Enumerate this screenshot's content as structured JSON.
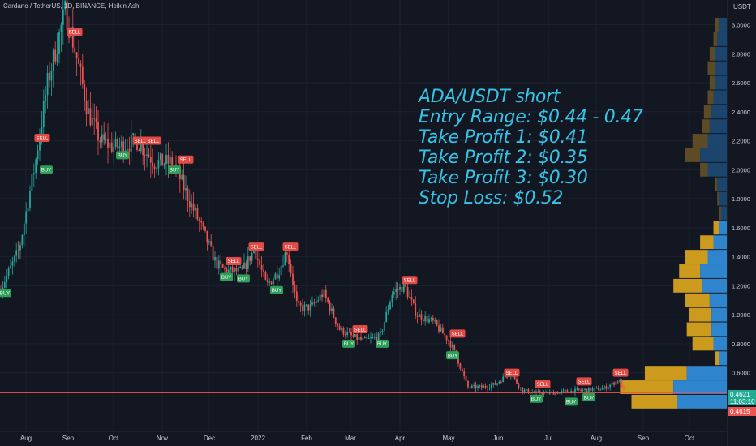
{
  "header": {
    "title": "Cardano / TetherUS, 1D, BINANCE, Heikin Ashi"
  },
  "axis": {
    "unit": "USDT"
  },
  "annotation": {
    "lines": [
      "ADA/USDT short",
      "Entry Range: $0.44 - 0.47",
      "Take Profit 1: $0.41",
      "Take Profit 2: $0.35",
      "Take Profit 3: $0.30",
      "Stop Loss: $0.52"
    ]
  },
  "price_tags": {
    "close_price": "0.4621",
    "countdown": "11:03:10",
    "last_price": "0.4615"
  },
  "colors": {
    "background": "#131722",
    "up": "#26a69a",
    "down": "#ef5350",
    "annotation": "#36c3e6",
    "vp_blue": "#2f8bd8",
    "vp_gold": "#d6a21f"
  },
  "chart_data": {
    "type": "candlestick",
    "style": "Heikin Ashi",
    "symbol": "Cardano / TetherUS",
    "exchange": "BINANCE",
    "interval": "1D",
    "y_ticks": [
      "0.6000",
      "0.8000",
      "1.0000",
      "1.2000",
      "1.4000",
      "1.6000",
      "1.8000",
      "2.0000",
      "2.2000",
      "2.4000",
      "2.6000",
      "2.8000",
      "3.0000"
    ],
    "x_ticks": [
      "Aug",
      "Sep",
      "Oct",
      "Nov",
      "Dec",
      "2022",
      "Feb",
      "Mar",
      "Apr",
      "May",
      "Jun",
      "Jul",
      "Aug",
      "Sep",
      "Oct"
    ],
    "ylim": [
      0.3,
      3.1
    ],
    "horizontal_line": 0.4615,
    "series_keypoints": [
      {
        "t": 0,
        "p": 1.15
      },
      {
        "t": 25,
        "p": 1.45
      },
      {
        "t": 45,
        "p": 2.05
      },
      {
        "t": 60,
        "p": 2.6
      },
      {
        "t": 82,
        "p": 3.1
      },
      {
        "t": 95,
        "p": 2.8
      },
      {
        "t": 110,
        "p": 2.4
      },
      {
        "t": 125,
        "p": 2.2
      },
      {
        "t": 145,
        "p": 2.15
      },
      {
        "t": 170,
        "p": 2.2
      },
      {
        "t": 192,
        "p": 2.05
      },
      {
        "t": 215,
        "p": 2.05
      },
      {
        "t": 230,
        "p": 1.85
      },
      {
        "t": 250,
        "p": 1.6
      },
      {
        "t": 268,
        "p": 1.35
      },
      {
        "t": 280,
        "p": 1.3
      },
      {
        "t": 300,
        "p": 1.3
      },
      {
        "t": 315,
        "p": 1.45
      },
      {
        "t": 330,
        "p": 1.2
      },
      {
        "t": 345,
        "p": 1.3
      },
      {
        "t": 355,
        "p": 1.45
      },
      {
        "t": 368,
        "p": 1.05
      },
      {
        "t": 385,
        "p": 1.05
      },
      {
        "t": 400,
        "p": 1.15
      },
      {
        "t": 420,
        "p": 0.9
      },
      {
        "t": 435,
        "p": 0.85
      },
      {
        "t": 450,
        "p": 0.82
      },
      {
        "t": 470,
        "p": 0.85
      },
      {
        "t": 485,
        "p": 1.15
      },
      {
        "t": 500,
        "p": 1.2
      },
      {
        "t": 515,
        "p": 1.0
      },
      {
        "t": 535,
        "p": 0.95
      },
      {
        "t": 555,
        "p": 0.82
      },
      {
        "t": 565,
        "p": 0.7
      },
      {
        "t": 578,
        "p": 0.5
      },
      {
        "t": 595,
        "p": 0.5
      },
      {
        "t": 612,
        "p": 0.52
      },
      {
        "t": 630,
        "p": 0.6
      },
      {
        "t": 645,
        "p": 0.48
      },
      {
        "t": 660,
        "p": 0.46
      },
      {
        "t": 680,
        "p": 0.46
      },
      {
        "t": 700,
        "p": 0.47
      },
      {
        "t": 720,
        "p": 0.48
      },
      {
        "t": 745,
        "p": 0.49
      },
      {
        "t": 765,
        "p": 0.55
      },
      {
        "t": 770,
        "p": 0.48
      }
    ],
    "signals": [
      {
        "label": "BUY",
        "t": 6,
        "p": 1.15
      },
      {
        "label": "SELL",
        "t": 92,
        "p": 2.95
      },
      {
        "label": "SELL",
        "t": 52,
        "p": 2.22
      },
      {
        "label": "BUY",
        "t": 57,
        "p": 2.0
      },
      {
        "label": "BUY",
        "t": 151,
        "p": 2.1
      },
      {
        "label": "SELL",
        "t": 173,
        "p": 2.2
      },
      {
        "label": "SELL",
        "t": 189,
        "p": 2.2
      },
      {
        "label": "BUY",
        "t": 215,
        "p": 2.0
      },
      {
        "label": "SELL",
        "t": 229,
        "p": 2.07
      },
      {
        "label": "SELL",
        "t": 288,
        "p": 1.37
      },
      {
        "label": "BUY",
        "t": 279,
        "p": 1.26
      },
      {
        "label": "BUY",
        "t": 300,
        "p": 1.25
      },
      {
        "label": "SELL",
        "t": 316,
        "p": 1.47
      },
      {
        "label": "BUY",
        "t": 341,
        "p": 1.17
      },
      {
        "label": "SELL",
        "t": 358,
        "p": 1.47
      },
      {
        "label": "SELL",
        "t": 444,
        "p": 0.9
      },
      {
        "label": "BUY",
        "t": 430,
        "p": 0.8
      },
      {
        "label": "BUY",
        "t": 471,
        "p": 0.8
      },
      {
        "label": "SELL",
        "t": 505,
        "p": 1.24
      },
      {
        "label": "SELL",
        "t": 564,
        "p": 0.87
      },
      {
        "label": "BUY",
        "t": 558,
        "p": 0.72
      },
      {
        "label": "SELL",
        "t": 631,
        "p": 0.6
      },
      {
        "label": "SELL",
        "t": 669,
        "p": 0.52
      },
      {
        "label": "BUY",
        "t": 661,
        "p": 0.42
      },
      {
        "label": "BUY",
        "t": 704,
        "p": 0.4
      },
      {
        "label": "BUY",
        "t": 726,
        "p": 0.43
      },
      {
        "label": "SELL",
        "t": 720,
        "p": 0.54
      },
      {
        "label": "SELL",
        "t": 765,
        "p": 0.6
      }
    ],
    "volume_profile": [
      {
        "price": 3.0,
        "up": 0.6,
        "down": 0.4
      },
      {
        "price": 2.9,
        "up": 0.7,
        "down": 0.5
      },
      {
        "price": 2.8,
        "up": 0.9,
        "down": 0.6
      },
      {
        "price": 2.7,
        "up": 1.0,
        "down": 0.6
      },
      {
        "price": 2.6,
        "up": 0.9,
        "down": 0.6
      },
      {
        "price": 2.5,
        "up": 1.0,
        "down": 0.7
      },
      {
        "price": 2.4,
        "up": 1.2,
        "down": 0.8
      },
      {
        "price": 2.3,
        "up": 1.3,
        "down": 0.9
      },
      {
        "price": 2.2,
        "up": 1.8,
        "down": 1.0
      },
      {
        "price": 2.1,
        "up": 2.2,
        "down": 1.4
      },
      {
        "price": 2.0,
        "up": 1.4,
        "down": 1.0
      },
      {
        "price": 1.9,
        "up": 0.6,
        "down": 0.5
      },
      {
        "price": 1.8,
        "up": 0.5,
        "down": 0.4
      },
      {
        "price": 1.7,
        "up": 0.4,
        "down": 0.3
      },
      {
        "price": 1.6,
        "up": 0.7,
        "down": 0.4
      },
      {
        "price": 1.5,
        "up": 1.4,
        "down": 0.7
      },
      {
        "price": 1.4,
        "up": 2.2,
        "down": 1.0
      },
      {
        "price": 1.3,
        "up": 2.5,
        "down": 1.4
      },
      {
        "price": 1.2,
        "up": 2.8,
        "down": 1.3
      },
      {
        "price": 1.1,
        "up": 2.2,
        "down": 0.9
      },
      {
        "price": 1.0,
        "up": 2.0,
        "down": 0.8
      },
      {
        "price": 0.9,
        "up": 2.1,
        "down": 0.8
      },
      {
        "price": 0.8,
        "up": 1.8,
        "down": 0.7
      },
      {
        "price": 0.7,
        "up": 0.6,
        "down": 0.4
      },
      {
        "price": 0.6,
        "up": 4.3,
        "down": 2.1
      },
      {
        "price": 0.5,
        "up": 5.6,
        "down": 2.8
      },
      {
        "price": 0.4,
        "up": 5.0,
        "down": 2.6
      }
    ]
  }
}
